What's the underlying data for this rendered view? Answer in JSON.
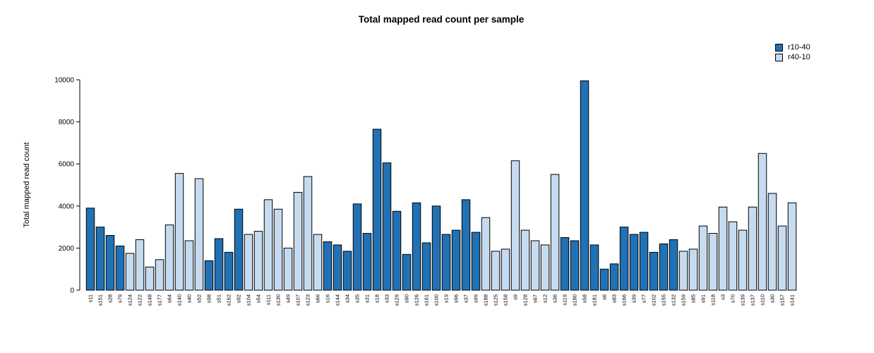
{
  "chart_data": {
    "type": "bar",
    "title": "Total mapped read count per sample",
    "xlabel": "",
    "ylabel": "Total mapped read count",
    "ylim": [
      0,
      10000
    ],
    "y_ticks": [
      0,
      2000,
      4000,
      6000,
      8000,
      10000
    ],
    "grid": false,
    "legend_position": "top-right",
    "legend": [
      {
        "name": "r10-40",
        "color": "#2171B5"
      },
      {
        "name": "r40-10",
        "color": "#C6DBEF"
      }
    ],
    "bar_stroke_color": "#000000",
    "categories": [
      "s11",
      "s151",
      "s28",
      "s79",
      "s124",
      "s122",
      "s148",
      "s177",
      "s64",
      "s140",
      "s40",
      "s52",
      "s98",
      "s51",
      "s162",
      "s92",
      "s104",
      "s54",
      "s111",
      "s130",
      "s49",
      "s107",
      "s123",
      "s66",
      "s16",
      "s144",
      "s34",
      "s35",
      "s31",
      "s18",
      "s33",
      "s129",
      "s90",
      "s126",
      "s161",
      "s100",
      "s19",
      "s96",
      "s37",
      "s99",
      "s188",
      "s125",
      "s158",
      "s9",
      "s128",
      "s67",
      "s12",
      "s36",
      "s119",
      "s180",
      "s58",
      "s181",
      "s6",
      "s83",
      "s166",
      "s39",
      "s77",
      "s102",
      "s155",
      "s132",
      "s159",
      "s85",
      "s91",
      "s118",
      "s3",
      "s70",
      "s139",
      "s137",
      "s110",
      "s30",
      "s157",
      "s141"
    ],
    "values": [
      3900,
      3000,
      2600,
      2100,
      1750,
      2400,
      1100,
      1450,
      3100,
      5550,
      2350,
      5300,
      1400,
      2450,
      1800,
      3850,
      2650,
      2800,
      4300,
      3850,
      2000,
      4650,
      5400,
      2650,
      2300,
      2150,
      1850,
      4100,
      2700,
      7650,
      6050,
      3750,
      1700,
      4150,
      2250,
      4000,
      2650,
      2850,
      4300,
      2750,
      3450,
      1850,
      1950,
      6150,
      2850,
      2350,
      2150,
      5500,
      2500,
      2350,
      9950,
      2150,
      1000,
      1250,
      3000,
      2650,
      2750,
      1800,
      2200,
      2400,
      1850,
      1950,
      3050,
      2700,
      3950,
      3250,
      2850,
      3950,
      6500,
      4600,
      3050,
      4150
    ],
    "bar_group": [
      "r10-40",
      "r10-40",
      "r10-40",
      "r10-40",
      "r40-10",
      "r40-10",
      "r40-10",
      "r40-10",
      "r40-10",
      "r40-10",
      "r40-10",
      "r40-10",
      "r10-40",
      "r10-40",
      "r10-40",
      "r10-40",
      "r40-10",
      "r40-10",
      "r40-10",
      "r40-10",
      "r40-10",
      "r40-10",
      "r40-10",
      "r40-10",
      "r10-40",
      "r10-40",
      "r10-40",
      "r10-40",
      "r10-40",
      "r10-40",
      "r10-40",
      "r10-40",
      "r10-40",
      "r10-40",
      "r10-40",
      "r10-40",
      "r10-40",
      "r10-40",
      "r10-40",
      "r10-40",
      "r40-10",
      "r40-10",
      "r40-10",
      "r40-10",
      "r40-10",
      "r40-10",
      "r40-10",
      "r40-10",
      "r10-40",
      "r10-40",
      "r10-40",
      "r10-40",
      "r10-40",
      "r10-40",
      "r10-40",
      "r10-40",
      "r10-40",
      "r10-40",
      "r10-40",
      "r10-40",
      "r40-10",
      "r40-10",
      "r40-10",
      "r40-10",
      "r40-10",
      "r40-10",
      "r40-10",
      "r40-10",
      "r40-10",
      "r40-10",
      "r40-10",
      "r40-10"
    ]
  }
}
